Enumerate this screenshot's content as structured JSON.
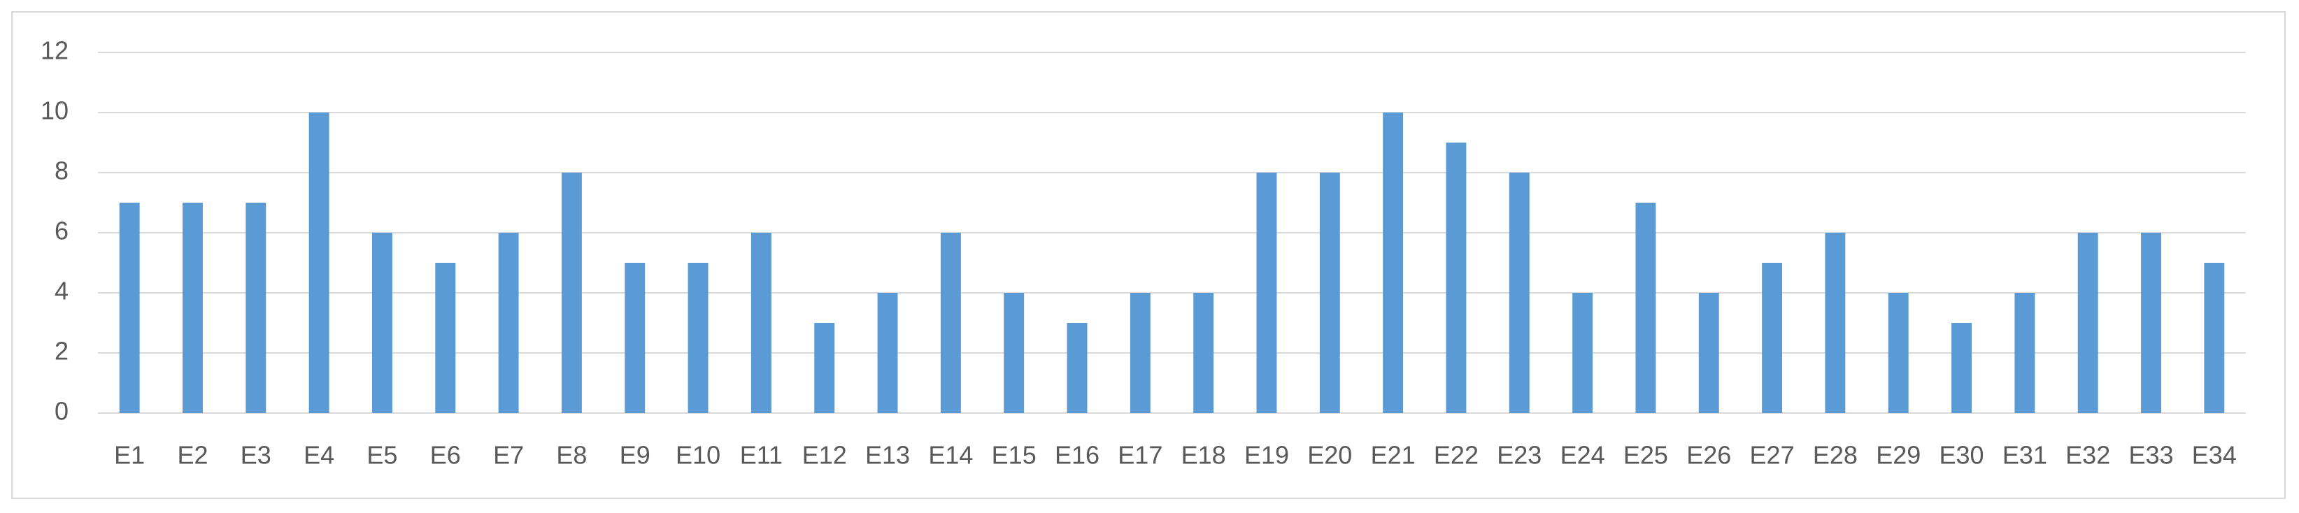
{
  "chart_data": {
    "type": "bar",
    "categories": [
      "E1",
      "E2",
      "E3",
      "E4",
      "E5",
      "E6",
      "E7",
      "E8",
      "E9",
      "E10",
      "E11",
      "E12",
      "E13",
      "E14",
      "E15",
      "E16",
      "E17",
      "E18",
      "E19",
      "E20",
      "E21",
      "E22",
      "E23",
      "E24",
      "E25",
      "E26",
      "E27",
      "E28",
      "E29",
      "E30",
      "E31",
      "E32",
      "E33",
      "E34"
    ],
    "values": [
      7,
      7,
      7,
      10,
      6,
      5,
      6,
      8,
      5,
      5,
      6,
      3,
      4,
      6,
      4,
      3,
      4,
      4,
      8,
      8,
      10,
      9,
      8,
      4,
      7,
      4,
      5,
      6,
      4,
      3,
      4,
      6,
      6,
      5
    ],
    "color": "#5b9bd5",
    "ylim": [
      0,
      12
    ],
    "yticks": [
      0,
      2,
      4,
      6,
      8,
      10,
      12
    ],
    "grid": true
  }
}
